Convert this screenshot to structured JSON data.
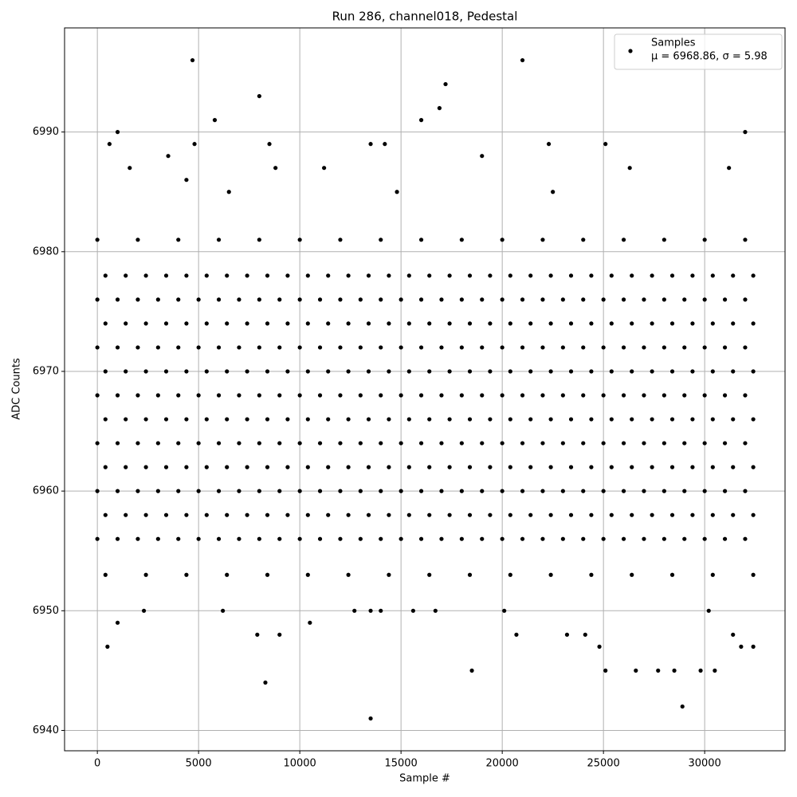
{
  "chart_data": {
    "type": "scatter",
    "title": "Run 286, channel018, Pedestal",
    "xlabel": "Sample #",
    "ylabel": "ADC Counts",
    "xlim": [
      -1620,
      33970
    ],
    "ylim": [
      6938.3,
      6998.7
    ],
    "xticks": [
      0,
      5000,
      10000,
      15000,
      20000,
      25000,
      30000
    ],
    "yticks": [
      6940,
      6950,
      6960,
      6970,
      6980,
      6990
    ],
    "grid": true,
    "legend": "upper right",
    "series": [
      {
        "name": "Samples",
        "stats_label": "μ = 6968.86, σ = 5.98",
        "color": "#000000",
        "x": [
          0,
          1000,
          2000,
          3000,
          4000,
          5000,
          6000,
          7000,
          8000,
          9000,
          10000,
          11000,
          12000,
          13000,
          14000,
          15000,
          16000,
          17000,
          18000,
          19000,
          20000,
          21000,
          22000,
          23000,
          24000,
          25000,
          26000,
          27000,
          28000,
          29000,
          30000,
          31000,
          32000,
          400,
          1400,
          2400,
          3400,
          4400,
          5400,
          6400,
          7400,
          8400,
          9400,
          10400,
          11400,
          12400,
          13400,
          14400,
          15400,
          16400,
          17400,
          18400,
          19400,
          20400,
          21400,
          22400,
          23400,
          24400,
          25400,
          26400,
          27400,
          28400,
          29400,
          30400,
          31400,
          32400,
          0,
          1000,
          2000,
          3000,
          4000,
          5000,
          6000,
          7000,
          8000,
          9000,
          10000,
          11000,
          12000,
          13000,
          14000,
          15000,
          16000,
          17000,
          18000,
          19000,
          20000,
          21000,
          22000,
          23000,
          24000,
          25000,
          26000,
          27000,
          28000,
          29000,
          30000,
          31000,
          32000,
          400,
          1400,
          2400,
          3400,
          4400,
          5400,
          6400,
          7400,
          8400,
          9400,
          10400,
          11400,
          12400,
          13400,
          14400,
          15400,
          16400,
          17400,
          18400,
          19400,
          20400,
          21400,
          22400,
          23400,
          24400,
          25400,
          26400,
          27400,
          28400,
          29400,
          30400,
          31400,
          32400,
          0,
          1000,
          2000,
          3000,
          4000,
          5000,
          6000,
          7000,
          8000,
          9000,
          10000,
          11000,
          12000,
          13000,
          14000,
          15000,
          16000,
          17000,
          18000,
          19000,
          20000,
          21000,
          22000,
          23000,
          24000,
          25000,
          26000,
          27000,
          28000,
          29000,
          30000,
          31000,
          32000,
          400,
          1400,
          2400,
          3400,
          4400,
          5400,
          6400,
          7400,
          8400,
          9400,
          10400,
          11400,
          12400,
          13400,
          14400,
          15400,
          16400,
          17400,
          18400,
          19400,
          20400,
          21400,
          22400,
          23400,
          24400,
          25400,
          26400,
          27400,
          28400,
          29400,
          30400,
          31400,
          32400,
          0,
          1000,
          2000,
          3000,
          4000,
          5000,
          6000,
          7000,
          8000,
          9000,
          10000,
          11000,
          12000,
          13000,
          14000,
          15000,
          16000,
          17000,
          18000,
          19000,
          20000,
          21000,
          22000,
          23000,
          24000,
          25000,
          26000,
          27000,
          28000,
          29000,
          30000,
          31000,
          32000,
          400,
          1400,
          2400,
          3400,
          4400,
          5400,
          6400,
          7400,
          8400,
          9400,
          10400,
          11400,
          12400,
          13400,
          14400,
          15400,
          16400,
          17400,
          18400,
          19400,
          20400,
          21400,
          22400,
          23400,
          24400,
          25400,
          26400,
          27400,
          28400,
          29400,
          30400,
          31400,
          32400,
          0,
          1000,
          2000,
          3000,
          4000,
          5000,
          6000,
          7000,
          8000,
          9000,
          10000,
          11000,
          12000,
          13000,
          14000,
          15000,
          16000,
          17000,
          18000,
          19000,
          20000,
          21000,
          22000,
          23000,
          24000,
          25000,
          26000,
          27000,
          28000,
          29000,
          30000,
          31000,
          32000,
          400,
          1400,
          2400,
          3400,
          4400,
          5400,
          6400,
          7400,
          8400,
          9400,
          10400,
          11400,
          12400,
          13400,
          14400,
          15400,
          16400,
          17400,
          18400,
          19400,
          20400,
          21400,
          22400,
          23400,
          24400,
          25400,
          26400,
          27400,
          28400,
          29400,
          30400,
          31400,
          32400,
          0,
          1000,
          2000,
          3000,
          4000,
          5000,
          6000,
          7000,
          8000,
          9000,
          10000,
          11000,
          12000,
          13000,
          14000,
          15000,
          16000,
          17000,
          18000,
          19000,
          20000,
          21000,
          22000,
          23000,
          24000,
          25000,
          26000,
          27000,
          28000,
          29000,
          30000,
          31000,
          32000,
          400,
          1400,
          2400,
          3400,
          4400,
          5400,
          6400,
          7400,
          8400,
          9400,
          10400,
          11400,
          12400,
          13400,
          14400,
          15400,
          16400,
          17400,
          18400,
          19400,
          20400,
          21400,
          22400,
          23400,
          24400,
          25400,
          26400,
          27400,
          28400,
          29400,
          30400,
          31400,
          32400,
          0,
          2000,
          4000,
          6000,
          8000,
          10000,
          12000,
          14000,
          16000,
          18000,
          20000,
          22000,
          24000,
          26000,
          28000,
          30000,
          32000,
          400,
          2400,
          4400,
          6400,
          8400,
          10400,
          12400,
          14400,
          16400,
          18400,
          20400,
          22400,
          24400,
          26400,
          28400,
          30400,
          32400,
          4700,
          21000,
          17200,
          8000,
          16900,
          5800,
          16000,
          1000,
          32000,
          4800,
          600,
          8500,
          13500,
          14200,
          22300,
          25100,
          500,
          1000,
          6200,
          2300,
          7900,
          8300,
          9000,
          10500,
          13500,
          13500,
          14000,
          18500,
          20700,
          25100,
          26600,
          28900,
          28500,
          29800,
          30500,
          31400,
          31800,
          32400,
          24800,
          23200,
          24100,
          27700,
          30200,
          12700,
          16700,
          15600,
          20100,
          1600,
          3500,
          4400,
          6500,
          8800,
          11200,
          14800,
          19000,
          22500,
          26300,
          31200
        ],
        "values": [
          6956,
          6956,
          6956,
          6956,
          6956,
          6956,
          6956,
          6956,
          6956,
          6956,
          6956,
          6956,
          6956,
          6956,
          6956,
          6956,
          6956,
          6956,
          6956,
          6956,
          6956,
          6956,
          6956,
          6956,
          6956,
          6956,
          6956,
          6956,
          6956,
          6956,
          6956,
          6956,
          6956,
          6958,
          6958,
          6958,
          6958,
          6958,
          6958,
          6958,
          6958,
          6958,
          6958,
          6958,
          6958,
          6958,
          6958,
          6958,
          6958,
          6958,
          6958,
          6958,
          6958,
          6958,
          6958,
          6958,
          6958,
          6958,
          6958,
          6958,
          6958,
          6958,
          6958,
          6958,
          6958,
          6958,
          6960,
          6960,
          6960,
          6960,
          6960,
          6960,
          6960,
          6960,
          6960,
          6960,
          6960,
          6960,
          6960,
          6960,
          6960,
          6960,
          6960,
          6960,
          6960,
          6960,
          6960,
          6960,
          6960,
          6960,
          6960,
          6960,
          6960,
          6960,
          6960,
          6960,
          6960,
          6960,
          6960,
          6962,
          6962,
          6962,
          6962,
          6962,
          6962,
          6962,
          6962,
          6962,
          6962,
          6962,
          6962,
          6962,
          6962,
          6962,
          6962,
          6962,
          6962,
          6962,
          6962,
          6962,
          6962,
          6962,
          6962,
          6962,
          6962,
          6962,
          6962,
          6962,
          6962,
          6962,
          6962,
          6962,
          6964,
          6964,
          6964,
          6964,
          6964,
          6964,
          6964,
          6964,
          6964,
          6964,
          6964,
          6964,
          6964,
          6964,
          6964,
          6964,
          6964,
          6964,
          6964,
          6964,
          6964,
          6964,
          6964,
          6964,
          6964,
          6964,
          6964,
          6964,
          6964,
          6964,
          6964,
          6964,
          6964,
          6966,
          6966,
          6966,
          6966,
          6966,
          6966,
          6966,
          6966,
          6966,
          6966,
          6966,
          6966,
          6966,
          6966,
          6966,
          6966,
          6966,
          6966,
          6966,
          6966,
          6966,
          6966,
          6966,
          6966,
          6966,
          6966,
          6966,
          6966,
          6966,
          6966,
          6966,
          6966,
          6966,
          6968,
          6968,
          6968,
          6968,
          6968,
          6968,
          6968,
          6968,
          6968,
          6968,
          6968,
          6968,
          6968,
          6968,
          6968,
          6968,
          6968,
          6968,
          6968,
          6968,
          6968,
          6968,
          6968,
          6968,
          6968,
          6968,
          6968,
          6968,
          6968,
          6968,
          6968,
          6968,
          6968,
          6970,
          6970,
          6970,
          6970,
          6970,
          6970,
          6970,
          6970,
          6970,
          6970,
          6970,
          6970,
          6970,
          6970,
          6970,
          6970,
          6970,
          6970,
          6970,
          6970,
          6970,
          6970,
          6970,
          6970,
          6970,
          6970,
          6970,
          6970,
          6970,
          6970,
          6970,
          6970,
          6970,
          6972,
          6972,
          6972,
          6972,
          6972,
          6972,
          6972,
          6972,
          6972,
          6972,
          6972,
          6972,
          6972,
          6972,
          6972,
          6972,
          6972,
          6972,
          6972,
          6972,
          6972,
          6972,
          6972,
          6972,
          6972,
          6972,
          6972,
          6972,
          6972,
          6972,
          6972,
          6972,
          6972,
          6974,
          6974,
          6974,
          6974,
          6974,
          6974,
          6974,
          6974,
          6974,
          6974,
          6974,
          6974,
          6974,
          6974,
          6974,
          6974,
          6974,
          6974,
          6974,
          6974,
          6974,
          6974,
          6974,
          6974,
          6974,
          6974,
          6974,
          6974,
          6974,
          6974,
          6974,
          6974,
          6974,
          6976,
          6976,
          6976,
          6976,
          6976,
          6976,
          6976,
          6976,
          6976,
          6976,
          6976,
          6976,
          6976,
          6976,
          6976,
          6976,
          6976,
          6976,
          6976,
          6976,
          6976,
          6976,
          6976,
          6976,
          6976,
          6976,
          6976,
          6976,
          6976,
          6976,
          6976,
          6976,
          6976,
          6978,
          6978,
          6978,
          6978,
          6978,
          6978,
          6978,
          6978,
          6978,
          6978,
          6978,
          6978,
          6978,
          6978,
          6978,
          6978,
          6978,
          6978,
          6978,
          6978,
          6978,
          6978,
          6978,
          6978,
          6978,
          6978,
          6978,
          6978,
          6978,
          6978,
          6978,
          6978,
          6978,
          6981,
          6981,
          6981,
          6981,
          6981,
          6981,
          6981,
          6981,
          6981,
          6981,
          6981,
          6981,
          6981,
          6981,
          6981,
          6981,
          6981,
          6953,
          6953,
          6953,
          6953,
          6953,
          6953,
          6953,
          6953,
          6953,
          6953,
          6953,
          6953,
          6953,
          6953,
          6953,
          6953,
          6953,
          6996,
          6996,
          6994,
          6993,
          6992,
          6991,
          6991,
          6990,
          6990,
          6989,
          6989,
          6989,
          6989,
          6989,
          6989,
          6989,
          6947,
          6949,
          6950,
          6950,
          6948,
          6944,
          6948,
          6949,
          6941,
          6950,
          6950,
          6945,
          6948,
          6945,
          6945,
          6942,
          6945,
          6945,
          6945,
          6948,
          6947,
          6947,
          6947,
          6948,
          6948,
          6945,
          6950,
          6950,
          6950,
          6950,
          6950,
          6987,
          6988,
          6986,
          6985,
          6987,
          6987,
          6985,
          6988,
          6985,
          6987,
          6987
        ]
      }
    ]
  }
}
